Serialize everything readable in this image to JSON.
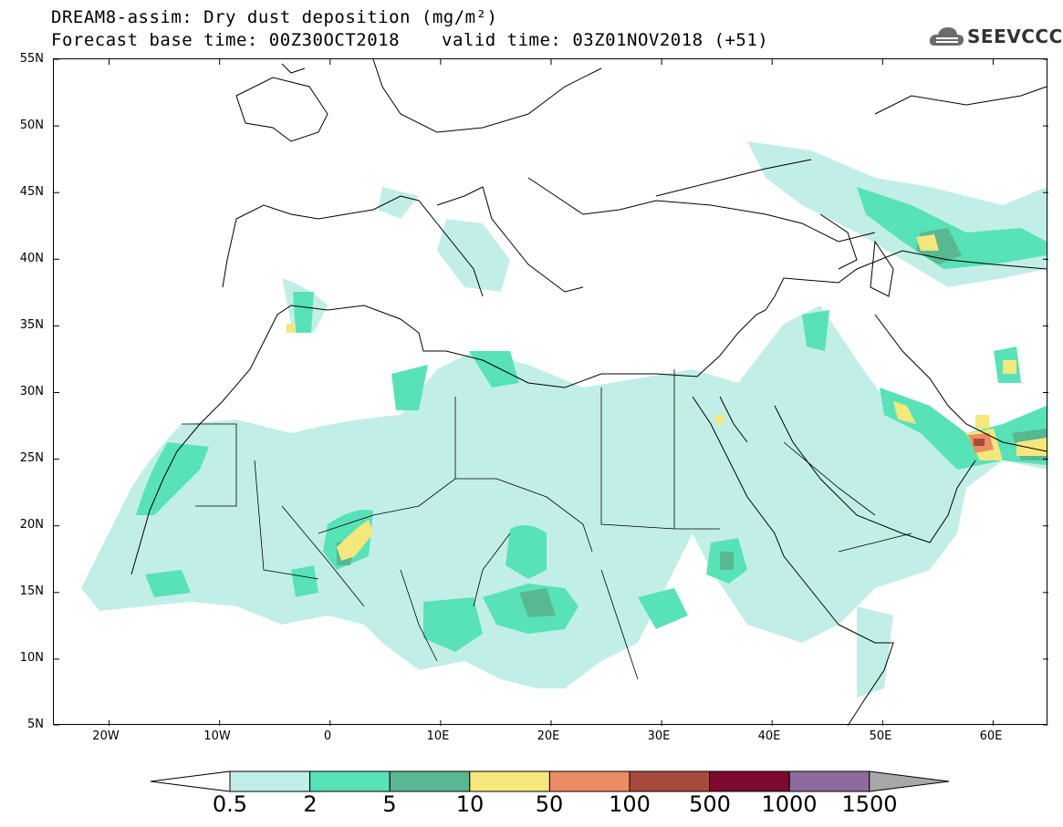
{
  "header": {
    "title_line1": "DREAM8-assim: Dry dust deposition (mg/m²)",
    "base_time": "Forecast base time: 00Z30OCT2018",
    "valid_time": "valid time: 03Z01NOV2018 (+51)",
    "logo_text": "SEEVCCC"
  },
  "map": {
    "lat_labels": [
      "55N",
      "50N",
      "45N",
      "40N",
      "35N",
      "30N",
      "25N",
      "20N",
      "15N",
      "10N",
      "5N"
    ],
    "lon_labels": [
      "20W",
      "10W",
      "0",
      "10E",
      "20E",
      "30E",
      "40E",
      "50E",
      "60E"
    ],
    "lon_range": [
      -25,
      65
    ],
    "lat_range": [
      5,
      55
    ]
  },
  "colorbar": {
    "labels": [
      "0.5",
      "2",
      "5",
      "10",
      "50",
      "100",
      "500",
      "1000",
      "1500"
    ],
    "colors": [
      "#c1efe8",
      "#58e2b7",
      "#57b892",
      "#f5e77c",
      "#eb8c64",
      "#a84a3c",
      "#7c0a2e",
      "#8c6b9c"
    ],
    "under_color": "#ffffff",
    "over_color": "#a8a8a8"
  }
}
